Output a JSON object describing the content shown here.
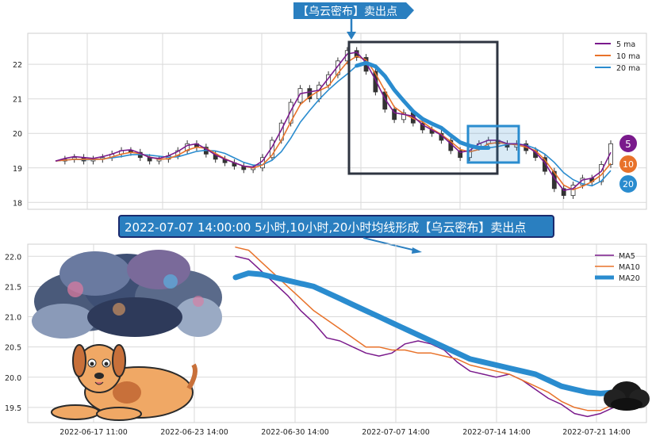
{
  "top_callout": "【乌云密布】卖出点",
  "middle_callout": "2022-07-07 14:00:00 5小时,10小时,20小时均线形成【乌云密布】卖出点",
  "badges": [
    "5",
    "10",
    "20"
  ],
  "colors": {
    "ma5": "#7a1a8c",
    "ma10": "#e8722a",
    "ma20": "#2a8ccf",
    "callout_bg": "#2a7fc0",
    "zoom_box": "#2e3440",
    "highlight_box": "#2a8ccf"
  },
  "icons": [
    "storm-cloud-icon",
    "dog-icon",
    "black-cloud-icon"
  ],
  "chart_data": [
    {
      "type": "line",
      "subtype": "candlestick-with-moving-averages",
      "ylim": [
        17.8,
        22.9
      ],
      "yticks": [
        18,
        19,
        20,
        21,
        22
      ],
      "grid": true,
      "legend_position": "top-right",
      "series": [
        {
          "name": "5 ma",
          "color": "#7a1a8c"
        },
        {
          "name": "10 ma",
          "color": "#e8722a"
        },
        {
          "name": "20 ma",
          "color": "#2a8ccf"
        }
      ],
      "price_path": [
        19.2,
        19.25,
        19.3,
        19.2,
        19.25,
        19.3,
        19.4,
        19.5,
        19.45,
        19.3,
        19.2,
        19.25,
        19.35,
        19.5,
        19.7,
        19.6,
        19.4,
        19.25,
        19.15,
        19.05,
        18.95,
        19.0,
        19.3,
        19.8,
        20.3,
        20.9,
        21.3,
        21.0,
        21.4,
        21.7,
        22.1,
        22.4,
        22.2,
        21.8,
        21.2,
        20.7,
        20.4,
        20.6,
        20.3,
        20.1,
        20.0,
        19.8,
        19.5,
        19.3,
        19.6,
        19.7,
        19.8,
        19.7,
        19.6,
        19.7,
        19.5,
        19.3,
        18.9,
        18.4,
        18.2,
        18.5,
        18.7,
        18.6,
        19.1,
        19.7
      ]
    },
    {
      "type": "line",
      "xlabels": [
        "2022-06-17 11:00",
        "2022-06-23 14:00",
        "2022-06-30 14:00",
        "2022-07-07 14:00",
        "2022-07-14 14:00",
        "2022-07-21 14:00"
      ],
      "ylim": [
        19.25,
        22.2
      ],
      "yticks": [
        19.5,
        20.0,
        20.5,
        21.0,
        21.5,
        22.0
      ],
      "ytick_labels": [
        "19.5",
        "20.0",
        "20.5",
        "21.0",
        "21.5",
        "22.0"
      ],
      "grid": true,
      "legend_position": "top-right",
      "series": [
        {
          "name": "MA5",
          "color": "#7a1a8c",
          "values": [
            22.0,
            21.95,
            21.75,
            21.55,
            21.35,
            21.1,
            20.9,
            20.65,
            20.6,
            20.5,
            20.4,
            20.35,
            20.4,
            20.55,
            20.6,
            20.55,
            20.45,
            20.25,
            20.1,
            20.05,
            20.0,
            20.05,
            19.95,
            19.8,
            19.65,
            19.55,
            19.4,
            19.35,
            19.4,
            19.5,
            19.75
          ]
        },
        {
          "name": "MA10",
          "color": "#e8722a",
          "values": [
            22.15,
            22.1,
            21.9,
            21.7,
            21.5,
            21.3,
            21.1,
            20.95,
            20.8,
            20.65,
            20.5,
            20.5,
            20.45,
            20.45,
            20.4,
            20.4,
            20.35,
            20.3,
            20.2,
            20.15,
            20.1,
            20.05,
            19.95,
            19.85,
            19.75,
            19.6,
            19.5,
            19.45,
            19.45,
            19.55,
            19.65
          ]
        },
        {
          "name": "MA20",
          "color": "#2a8ccf",
          "values": [
            21.65,
            21.72,
            21.7,
            21.65,
            21.6,
            21.55,
            21.5,
            21.4,
            21.3,
            21.2,
            21.1,
            21.0,
            20.9,
            20.8,
            20.7,
            20.6,
            20.5,
            20.4,
            20.3,
            20.25,
            20.2,
            20.15,
            20.1,
            20.05,
            19.95,
            19.85,
            19.8,
            19.75,
            19.73,
            19.75,
            19.82
          ]
        }
      ]
    }
  ]
}
